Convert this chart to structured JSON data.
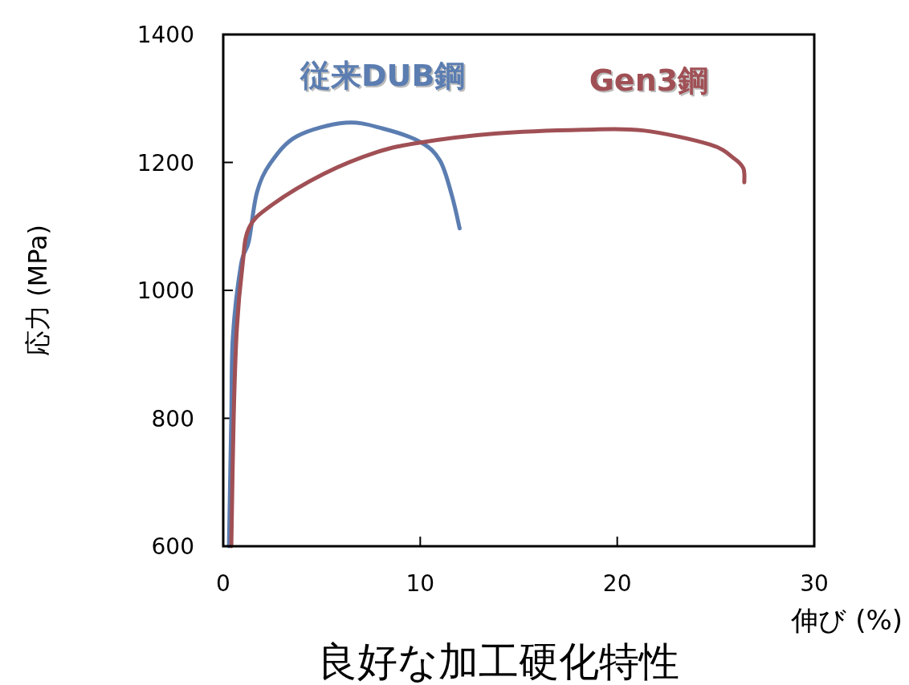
{
  "chart_data": {
    "type": "line",
    "xlabel": "伸び (%)",
    "ylabel": "応力 (MPa)",
    "annotations": [
      "良好な加工硬化特性"
    ],
    "xlim": [
      0,
      30
    ],
    "xticks": [
      0,
      10,
      20,
      30
    ],
    "ylim": [
      600,
      1400
    ],
    "yticks": [
      600,
      800,
      1000,
      1200,
      1400
    ],
    "grid": false,
    "marker": "none",
    "line_style": "solid",
    "series": [
      {
        "name": "従来DUB鋼",
        "color": "#5b7db1",
        "x": [
          0.29,
          0.41,
          0.49,
          0.9,
          1.3,
          1.71,
          2.4,
          3.75,
          6.2,
          8.1,
          10.0,
          11.0,
          11.6,
          12.0
        ],
        "values": [
          600,
          802,
          927,
          1040,
          1077,
          1153,
          1199,
          1241,
          1262,
          1253,
          1232,
          1203,
          1149,
          1097
        ]
      },
      {
        "name": "Gen3鋼",
        "color": "#a05055",
        "x": [
          0.41,
          0.53,
          0.69,
          0.98,
          1.3,
          2.4,
          5.1,
          7.8,
          10.0,
          13.8,
          18.3,
          21.3,
          24.7,
          25.9,
          26.4,
          26.45
        ],
        "values": [
          600,
          802,
          940,
          1040,
          1097,
          1132,
          1182,
          1216,
          1231,
          1245,
          1251,
          1250,
          1228,
          1207,
          1191,
          1169
        ]
      }
    ]
  }
}
